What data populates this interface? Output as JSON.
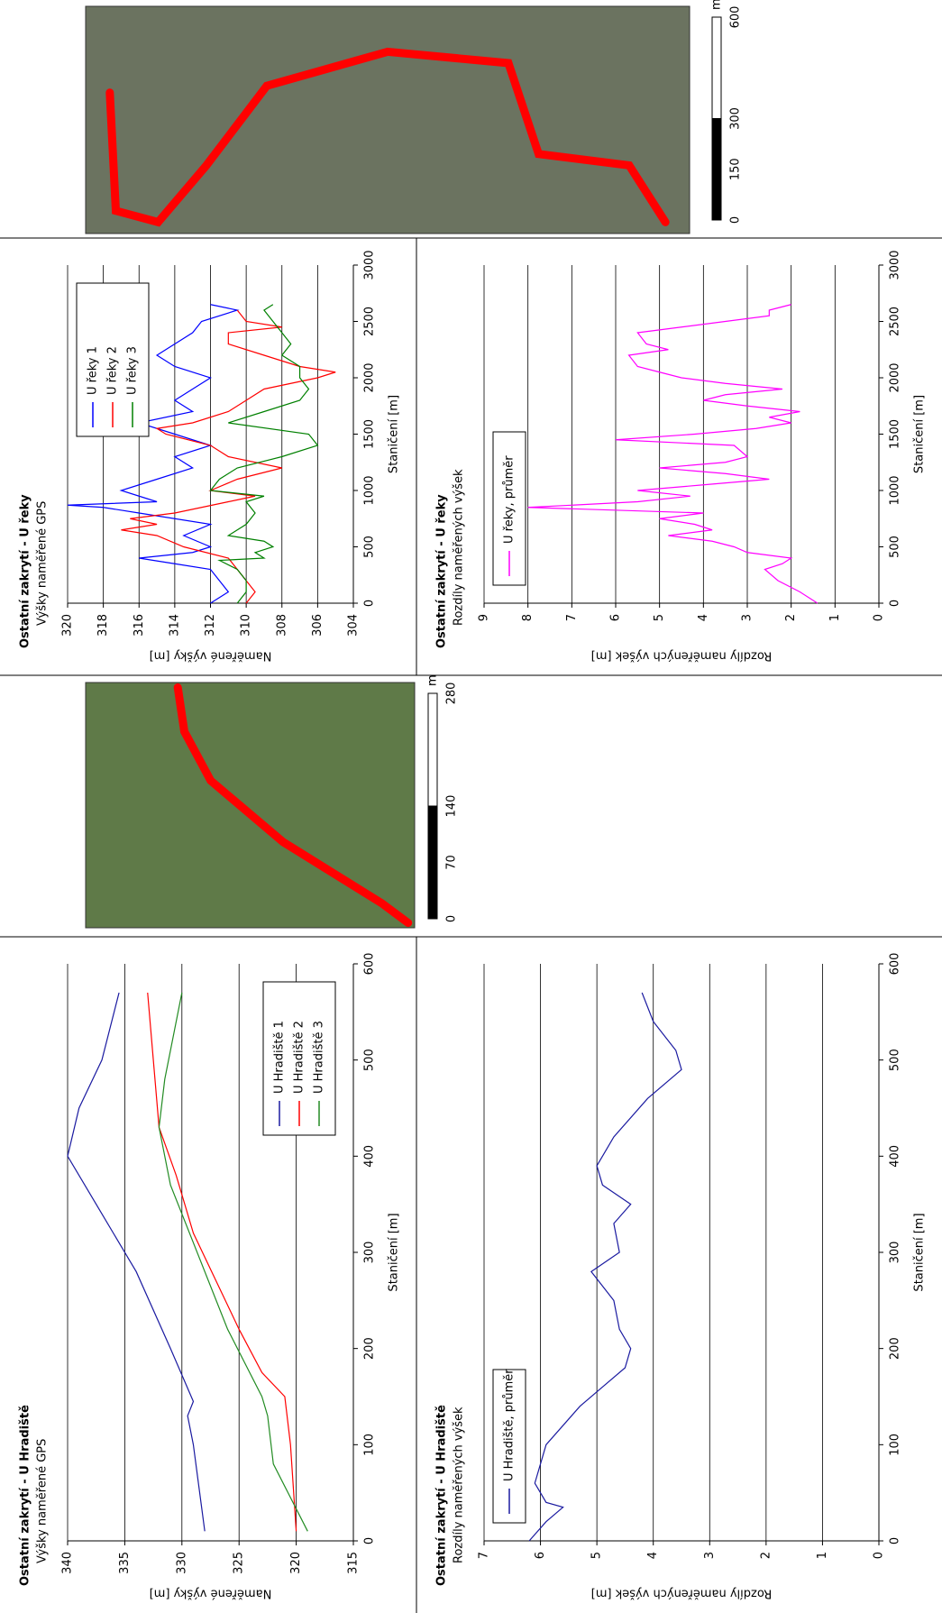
{
  "chart_data": [
    {
      "type": "line",
      "title": "Ostatní zakrytí - U Hradiště",
      "subtitle": "Výšky naměřené GPS",
      "xlabel": "Staničení [m]",
      "ylabel": "Naměřené výšky [m]",
      "xlim": [
        0,
        600
      ],
      "xticks": [
        0,
        100,
        200,
        300,
        400,
        500,
        600
      ],
      "ylim": [
        315,
        340
      ],
      "yticks": [
        315,
        320,
        325,
        330,
        335,
        340
      ],
      "grid": true,
      "legend": "lower right",
      "series": [
        {
          "name": "U Hradiště 1",
          "color": "#1a1aa0",
          "x": [
            10,
            100,
            130,
            145,
            200,
            280,
            340,
            400,
            450,
            500,
            570
          ],
          "values": [
            328,
            329,
            329.5,
            329,
            331,
            334,
            337,
            340,
            339,
            337,
            335.5
          ]
        },
        {
          "name": "U Hradiště 2",
          "color": "#ff0000",
          "x": [
            10,
            100,
            150,
            175,
            220,
            270,
            320,
            380,
            430,
            500,
            570
          ],
          "values": [
            320,
            320.5,
            321,
            323,
            325,
            327,
            329,
            330.5,
            332,
            332.5,
            333
          ]
        },
        {
          "name": "U Hradiště 3",
          "color": "#228b22",
          "x": [
            10,
            80,
            130,
            150,
            220,
            310,
            370,
            430,
            480,
            570
          ],
          "values": [
            319,
            322,
            322.5,
            323,
            326,
            329,
            331,
            332,
            331.5,
            330
          ]
        }
      ]
    },
    {
      "type": "line",
      "title": "Ostatní zakrytí - U Hradiště",
      "subtitle": "Rozdíly naměřených výšek",
      "xlabel": "Staničení [m]",
      "ylabel": "Rozdíly naměřených výšek [m]",
      "xlim": [
        0,
        600
      ],
      "xticks": [
        0,
        100,
        200,
        300,
        400,
        500,
        600
      ],
      "ylim": [
        0,
        7
      ],
      "yticks": [
        0,
        1,
        2,
        3,
        4,
        5,
        6,
        7
      ],
      "grid": true,
      "legend": "upper left",
      "series": [
        {
          "name": "U Hradiště, průměr",
          "color": "#1a1aa0",
          "x": [
            0,
            20,
            35,
            40,
            60,
            100,
            140,
            160,
            180,
            200,
            220,
            250,
            280,
            300,
            330,
            350,
            370,
            390,
            420,
            460,
            490,
            510,
            540,
            570
          ],
          "values": [
            6.2,
            5.9,
            5.6,
            5.9,
            6.1,
            5.9,
            5.3,
            4.9,
            4.5,
            4.4,
            4.6,
            4.7,
            5.1,
            4.6,
            4.7,
            4.4,
            4.9,
            5.0,
            4.7,
            4.1,
            3.5,
            3.6,
            4.0,
            4.2
          ]
        }
      ]
    },
    {
      "type": "line",
      "title": "Ostatní zakrytí - U řeky",
      "subtitle": "Výšky naměřené GPS",
      "xlabel": "Staničení [m]",
      "ylabel": "Naměřené výšky [m]",
      "xlim": [
        0,
        3000
      ],
      "xticks": [
        0,
        500,
        1000,
        1500,
        2000,
        2500,
        3000
      ],
      "ylim": [
        304,
        320
      ],
      "yticks": [
        304,
        306,
        308,
        310,
        312,
        314,
        316,
        318,
        320
      ],
      "grid": true,
      "legend": "upper right",
      "series": [
        {
          "name": "U řeky 1",
          "color": "#0000ff",
          "x": [
            0,
            100,
            200,
            300,
            350,
            400,
            450,
            500,
            600,
            700,
            800,
            850,
            870,
            900,
            1000,
            1100,
            1200,
            1300,
            1400,
            1500,
            1600,
            1700,
            1800,
            1900,
            2000,
            2100,
            2200,
            2300,
            2400,
            2500,
            2600,
            2650
          ],
          "values": [
            312,
            311,
            311.5,
            312,
            314,
            316,
            313,
            312,
            313.5,
            312,
            316,
            318,
            320,
            315,
            317,
            315,
            313,
            314,
            312,
            314,
            316,
            313,
            314,
            313,
            312,
            314,
            315,
            314,
            313,
            312.5,
            310.5,
            312
          ]
        },
        {
          "name": "U řeky 2",
          "color": "#ff0000",
          "x": [
            0,
            100,
            200,
            300,
            400,
            500,
            600,
            650,
            700,
            750,
            800,
            900,
            950,
            1000,
            1100,
            1200,
            1300,
            1400,
            1500,
            1550,
            1600,
            1700,
            1800,
            1900,
            2000,
            2050,
            2100,
            2200,
            2300,
            2400,
            2450,
            2500,
            2600
          ],
          "values": [
            310,
            309.5,
            310,
            310.5,
            311,
            313.5,
            315,
            317,
            315,
            316.5,
            314,
            311,
            309.5,
            312,
            310.5,
            308,
            311,
            312,
            314.5,
            315,
            313,
            311,
            310,
            309,
            306,
            305,
            307,
            309,
            311,
            311,
            308,
            310,
            310.5
          ]
        },
        {
          "name": "U řeky 3",
          "color": "#008000",
          "x": [
            0,
            100,
            200,
            300,
            380,
            400,
            450,
            500,
            550,
            600,
            700,
            800,
            900,
            950,
            1000,
            1100,
            1200,
            1300,
            1400,
            1500,
            1600,
            1700,
            1800,
            1900,
            2000,
            2100,
            2200,
            2300,
            2400,
            2500,
            2600,
            2650
          ],
          "values": [
            310.5,
            310,
            310,
            310.5,
            311.5,
            309,
            309.5,
            308.5,
            309,
            311,
            310,
            309.5,
            310,
            309,
            312,
            311.5,
            310.5,
            308,
            306,
            306.5,
            311,
            309,
            307,
            306.5,
            307,
            307,
            308,
            307.5,
            308,
            308.5,
            309,
            308.5
          ]
        }
      ]
    },
    {
      "type": "line",
      "title": "Ostatní zakrytí - U řeky",
      "subtitle": "Rozdíly naměřených výšek",
      "xlabel": "Staničení [m]",
      "ylabel": "Rozdíly naměřených výšek [m]",
      "xlim": [
        0,
        3000
      ],
      "xticks": [
        0,
        500,
        1000,
        1500,
        2000,
        2500,
        3000
      ],
      "ylim": [
        0,
        9
      ],
      "yticks": [
        0,
        1,
        2,
        3,
        4,
        5,
        6,
        7,
        8,
        9
      ],
      "grid": true,
      "legend": "upper left",
      "series": [
        {
          "name": "U řeky, průměr",
          "color": "#ff00ff",
          "x": [
            0,
            100,
            200,
            300,
            350,
            400,
            450,
            500,
            550,
            600,
            650,
            700,
            750,
            800,
            850,
            900,
            950,
            1000,
            1050,
            1100,
            1150,
            1200,
            1250,
            1300,
            1400,
            1450,
            1500,
            1550,
            1600,
            1650,
            1700,
            1750,
            1800,
            1850,
            1900,
            1950,
            2000,
            2050,
            2100,
            2200,
            2250,
            2300,
            2400,
            2450,
            2500,
            2550,
            2600,
            2650
          ],
          "values": [
            1.4,
            1.8,
            2.3,
            2.6,
            2.2,
            2.0,
            3.0,
            3.3,
            3.8,
            4.8,
            3.8,
            4.2,
            5.0,
            4.0,
            8.0,
            5.5,
            4.3,
            5.5,
            4.0,
            2.5,
            3.5,
            5.0,
            3.5,
            3.0,
            3.3,
            6.0,
            4.2,
            2.8,
            2.0,
            2.5,
            1.8,
            3.0,
            4.0,
            3.5,
            2.2,
            3.5,
            4.5,
            5.0,
            5.5,
            5.7,
            4.8,
            5.3,
            5.5,
            4.5,
            3.5,
            2.5,
            2.5,
            2.0
          ]
        }
      ]
    }
  ],
  "maps": [
    {
      "scale_ticks": [
        0,
        70,
        140,
        280
      ],
      "scale_unit": "m"
    },
    {
      "scale_ticks": [
        0,
        150,
        300,
        600
      ],
      "scale_unit": "m"
    }
  ]
}
